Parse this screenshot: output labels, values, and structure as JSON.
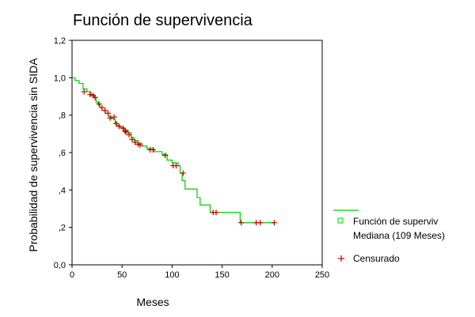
{
  "chart_data": {
    "type": "line",
    "title": "Función de supervivencia",
    "xlabel": "Meses",
    "ylabel": "Probabilidad de supervivencia sin SIDA",
    "xlim": [
      0,
      250
    ],
    "ylim": [
      0,
      1.2
    ],
    "x_ticks": [
      0,
      50,
      100,
      150,
      200,
      250
    ],
    "x_tick_labels": [
      "0",
      "50",
      "100",
      "150",
      "200",
      "250"
    ],
    "y_ticks": [
      0,
      0.2,
      0.4,
      0.6,
      0.8,
      1.0,
      1.2
    ],
    "y_tick_labels": [
      "0,0",
      ",2",
      ",4",
      ",6",
      ",8",
      "1,0",
      "1,2"
    ],
    "grid": false,
    "legend_position": "right",
    "colors": {
      "survival": "#00cc00",
      "censored": "#cc0000"
    },
    "series": [
      {
        "name": "Función de superviv",
        "kind": "step",
        "x": [
          0,
          3,
          7,
          11,
          15,
          19,
          22,
          24,
          26,
          28,
          30,
          33,
          36,
          39,
          43,
          45,
          48,
          52,
          56,
          59,
          62,
          66,
          70,
          75,
          82,
          90,
          95,
          100,
          106,
          108,
          110,
          113,
          125,
          128,
          138,
          145,
          168,
          202
        ],
        "y": [
          1.0,
          0.985,
          0.97,
          0.94,
          0.925,
          0.91,
          0.895,
          0.87,
          0.855,
          0.84,
          0.825,
          0.81,
          0.795,
          0.78,
          0.76,
          0.745,
          0.735,
          0.72,
          0.705,
          0.68,
          0.665,
          0.65,
          0.635,
          0.62,
          0.605,
          0.59,
          0.56,
          0.545,
          0.53,
          0.49,
          0.45,
          0.405,
          0.36,
          0.32,
          0.28,
          0.28,
          0.225,
          0.225
        ]
      },
      {
        "name": "Censurado",
        "kind": "censored",
        "x": [
          12,
          18,
          21,
          23,
          27,
          30,
          33,
          36,
          38,
          42,
          44,
          47,
          51,
          53,
          54,
          57,
          60,
          63,
          66,
          68,
          78,
          81,
          93,
          101,
          104,
          111,
          141,
          144,
          169,
          184,
          188,
          202
        ],
        "y": [
          0.925,
          0.91,
          0.905,
          0.895,
          0.86,
          0.84,
          0.825,
          0.81,
          0.785,
          0.79,
          0.755,
          0.74,
          0.73,
          0.715,
          0.71,
          0.695,
          0.67,
          0.655,
          0.645,
          0.64,
          0.615,
          0.615,
          0.585,
          0.53,
          0.53,
          0.49,
          0.28,
          0.28,
          0.225,
          0.225,
          0.225,
          0.225
        ]
      }
    ],
    "legend": {
      "survival_label": "Función de superviv",
      "median_label": "Mediana (109 Meses)",
      "censored_label": "Censurado"
    }
  }
}
